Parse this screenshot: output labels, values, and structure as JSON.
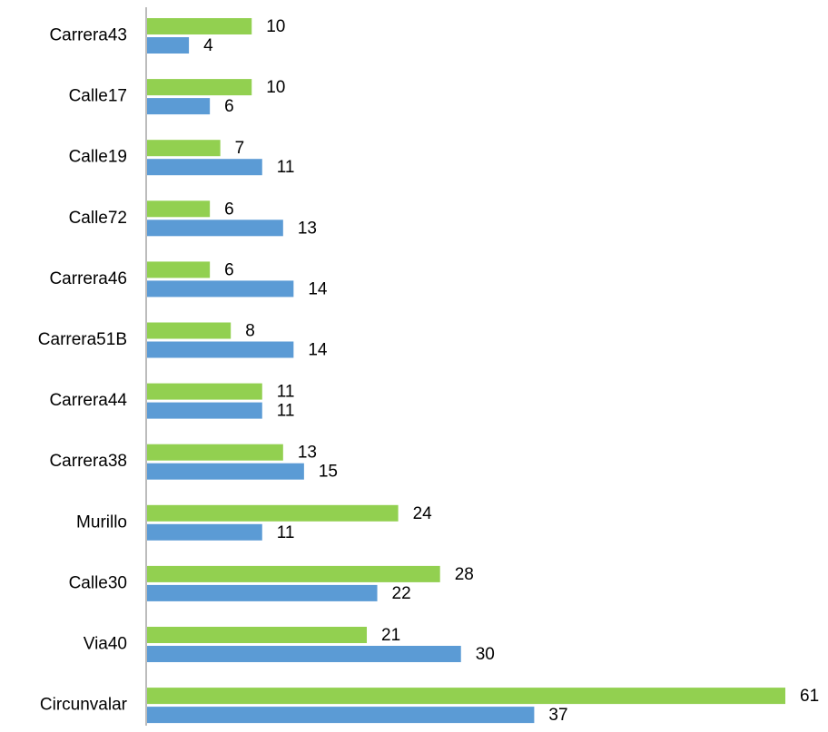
{
  "chart_data": {
    "type": "bar",
    "orientation": "horizontal",
    "categories": [
      "Carrera43",
      "Calle17",
      "Calle19",
      "Calle72",
      "Carrera46",
      "Carrera51B",
      "Carrera44",
      "Carrera38",
      "Murillo",
      "Calle30",
      "Via40",
      "Circunvalar"
    ],
    "series": [
      {
        "color": "#92d050",
        "values": [
          10,
          10,
          7,
          6,
          6,
          8,
          11,
          13,
          24,
          28,
          21,
          61
        ]
      },
      {
        "color": "#5b9bd5",
        "values": [
          4,
          6,
          11,
          13,
          14,
          14,
          11,
          15,
          11,
          22,
          30,
          37
        ]
      }
    ]
  }
}
